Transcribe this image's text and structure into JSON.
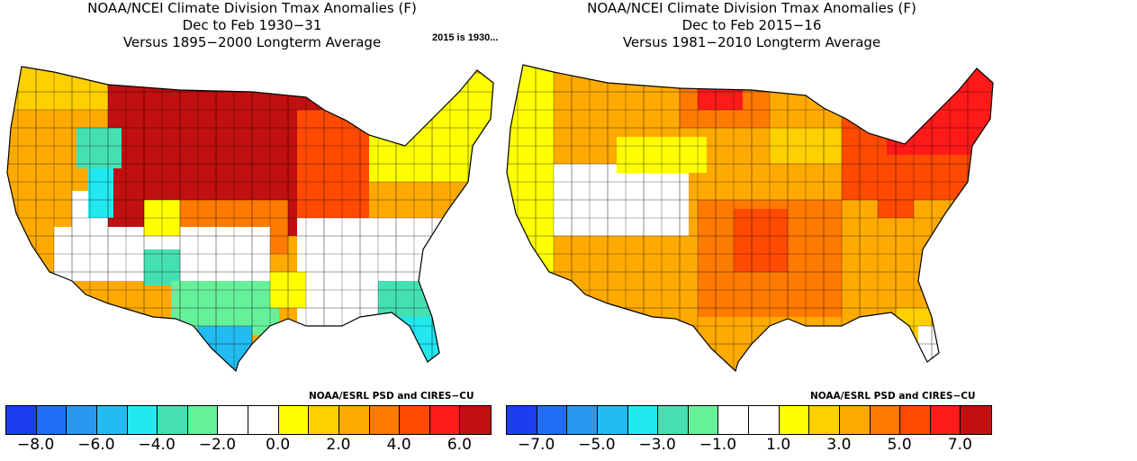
{
  "annotation": "2015 is 1930...",
  "panels": [
    {
      "title_lines": [
        "NOAA/NCEI Climate Division Tmax Anomalies (F)",
        "Dec to Feb 1930−31",
        "Versus 1895−2000 Longterm Average"
      ],
      "credit": "NOAA/ESRL PSD and CIRES−CU",
      "colorbar": {
        "colors": [
          "#1a3ef0",
          "#1f6ef5",
          "#2a97f0",
          "#22bcf2",
          "#22e8f0",
          "#45e0b2",
          "#66f09a",
          "#ffffff",
          "#ffffff",
          "#ffff00",
          "#ffd000",
          "#ffaa00",
          "#ff7a00",
          "#ff4a00",
          "#ff1a1a",
          "#c01010"
        ],
        "tick_labels": [
          "−8.0",
          "−6.0",
          "−4.0",
          "−2.0",
          "0.0",
          "2.0",
          "4.0",
          "6.0"
        ]
      }
    },
    {
      "title_lines": [
        "NOAA/NCEI Climate Division Tmax Anomalies (F)",
        "Dec to Feb 2015−16",
        "Versus 1981−2010 Longterm Average"
      ],
      "credit": "NOAA/ESRL PSD and CIRES−CU",
      "colorbar": {
        "colors": [
          "#1a3ef0",
          "#1f6ef5",
          "#2a97f0",
          "#22bcf2",
          "#22e8f0",
          "#45e0b2",
          "#66f09a",
          "#ffffff",
          "#ffffff",
          "#ffff00",
          "#ffd000",
          "#ffaa00",
          "#ff7a00",
          "#ff4a00",
          "#ff1a1a",
          "#c01010"
        ],
        "tick_labels": [
          "−7.0",
          "−5.0",
          "−3.0",
          "−1.0",
          "1.0",
          "3.0",
          "5.0",
          "7.0"
        ]
      }
    }
  ]
}
